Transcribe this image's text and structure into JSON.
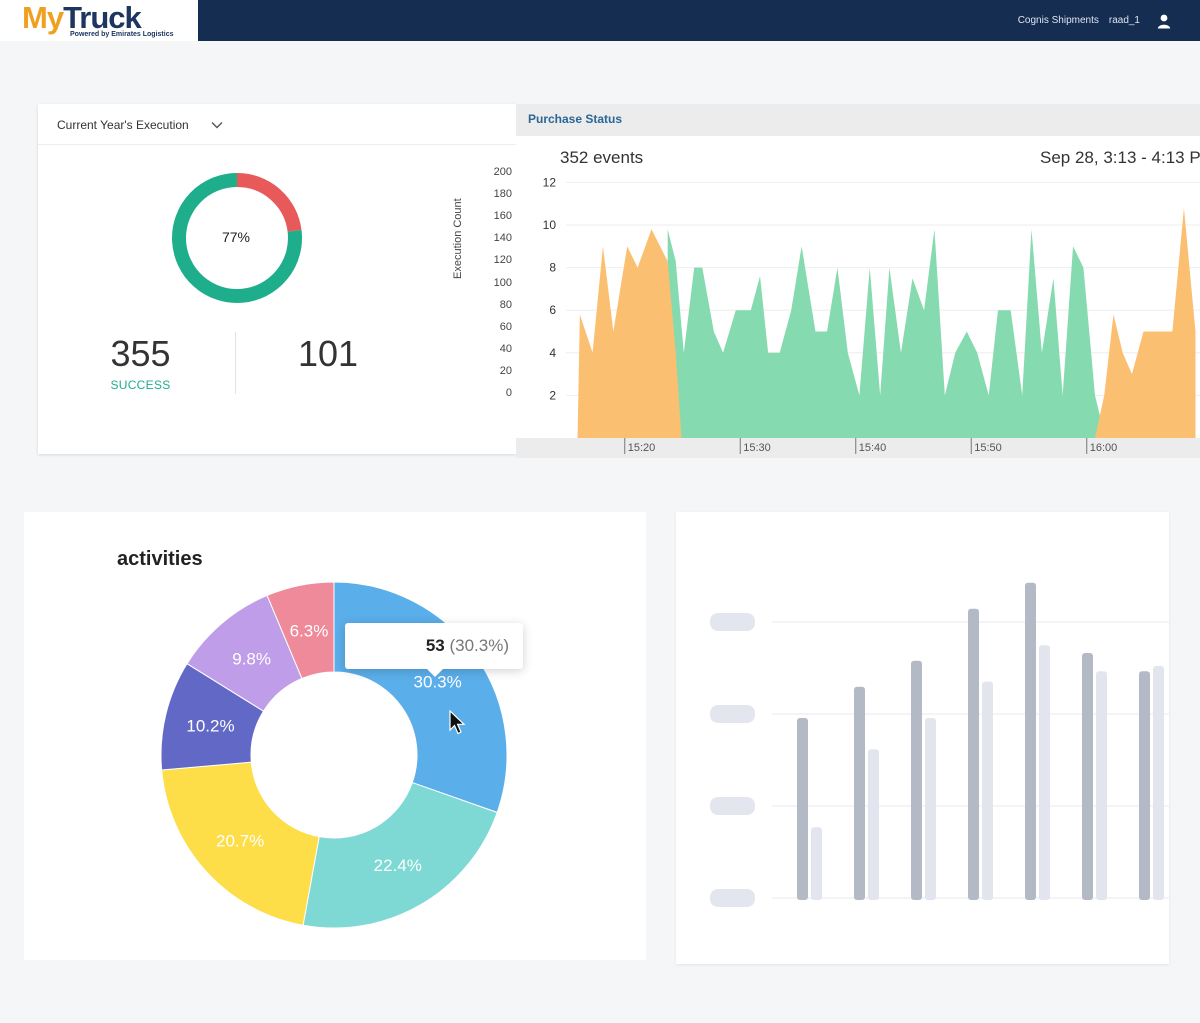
{
  "header": {
    "logo_my": "My",
    "logo_truck": "Truck",
    "logo_sub": "Powered by Emirates Logistics",
    "company": "Cognis Shipments",
    "user": "raad_1",
    "user_icon": "user-icon",
    "bg_color": "#162d52"
  },
  "execution": {
    "dropdown_label": "Current Year's Execution",
    "donut_percent_label": "77%",
    "donut_fraction": 0.77,
    "success_count": "355",
    "success_label": "SUCCESS",
    "other_count": "101",
    "success_color": "#1fae8c",
    "fail_color": "#e85a5a",
    "axis_label": "Execution Count",
    "axis_ticks": [
      "200",
      "180",
      "160",
      "140",
      "120",
      "100",
      "80",
      "60",
      "40",
      "20",
      "0"
    ]
  },
  "purchase_status": {
    "title": "Purchase Status",
    "events": "352 events",
    "time_range": "Sep 28, 3:13 - 4:13 P"
  },
  "activities": {
    "title": "activities",
    "tooltip_value": "53",
    "tooltip_pct": "(30.3%)"
  },
  "chart_data": [
    {
      "type": "area",
      "title": "Purchase Status",
      "y_ticks": [
        "12",
        "10",
        "8",
        "6",
        "4",
        "2"
      ],
      "ylim": [
        0,
        12
      ],
      "x_ticks": [
        "15:20",
        "15:30",
        "15:40",
        "15:50",
        "16:00"
      ],
      "xlim_minutes": [
        15,
        69
      ],
      "series": [
        {
          "name": "",
          "color": "#fbbf72",
          "x": [
            16,
            16.2,
            17.3,
            18.2,
            19.1,
            20.3,
            21.2,
            22.4,
            23.8,
            24.5,
            25
          ],
          "y": [
            0,
            5.8,
            4,
            9,
            5,
            9,
            8,
            9.8,
            8.3,
            4,
            0
          ]
        },
        {
          "name": "",
          "color": "#86dab0",
          "x": [
            23.8,
            24.5,
            25.2,
            26.1,
            26.8,
            27.8,
            28.6,
            29.7,
            31.0,
            31.8,
            32.5,
            33.5,
            34.5,
            35.4,
            36.6,
            37.6,
            38.5,
            39.4,
            40.4,
            41.3,
            42.2,
            43.0,
            44.0,
            45.0,
            46.0,
            46.9,
            47.8,
            48.7,
            49.7,
            50.6,
            51.6,
            52.4,
            53.5,
            54.5,
            55.3,
            56.2,
            57.2,
            58.0,
            58.9,
            59.8,
            60.8,
            61.7,
            62.6,
            63.6
          ],
          "y": [
            9.8,
            8.3,
            4,
            8,
            8,
            5,
            4,
            6,
            6,
            7.6,
            4,
            4,
            6,
            9,
            5,
            5,
            8,
            4,
            2,
            8,
            2,
            8,
            4,
            7.5,
            6,
            9.8,
            2,
            4,
            5,
            4,
            2,
            6,
            6,
            2,
            9.8,
            4,
            7.5,
            2,
            9,
            8,
            2,
            0,
            0,
            0
          ]
        },
        {
          "name": "",
          "color": "#fbbf72",
          "x": [
            60.8,
            61.6,
            62.4,
            63.2,
            64.0,
            65.0,
            66.2,
            67.5,
            68.5,
            69.5
          ],
          "y": [
            0,
            2,
            5.8,
            4,
            3,
            5,
            5,
            5,
            10.8,
            5
          ]
        }
      ]
    },
    {
      "type": "pie",
      "title": "activities",
      "labels": [
        "30.3%",
        "22.4%",
        "20.7%",
        "10.2%",
        "9.8%",
        "6.3%"
      ],
      "values": [
        30.3,
        22.4,
        20.7,
        10.2,
        9.8,
        6.3
      ],
      "colors": [
        "#5aaeea",
        "#7ed8d4",
        "#fddd48",
        "#6168c6",
        "#bf9de8",
        "#ef8a9a"
      ]
    },
    {
      "type": "bar",
      "title": "",
      "series": [
        {
          "name": "",
          "values": [
            0.7,
            0.82,
            0.92,
            1.12,
            1.22,
            0.95,
            0.88
          ]
        },
        {
          "name": "",
          "values": [
            0.28,
            0.58,
            0.7,
            0.84,
            0.98,
            0.88,
            0.9
          ]
        }
      ]
    }
  ]
}
